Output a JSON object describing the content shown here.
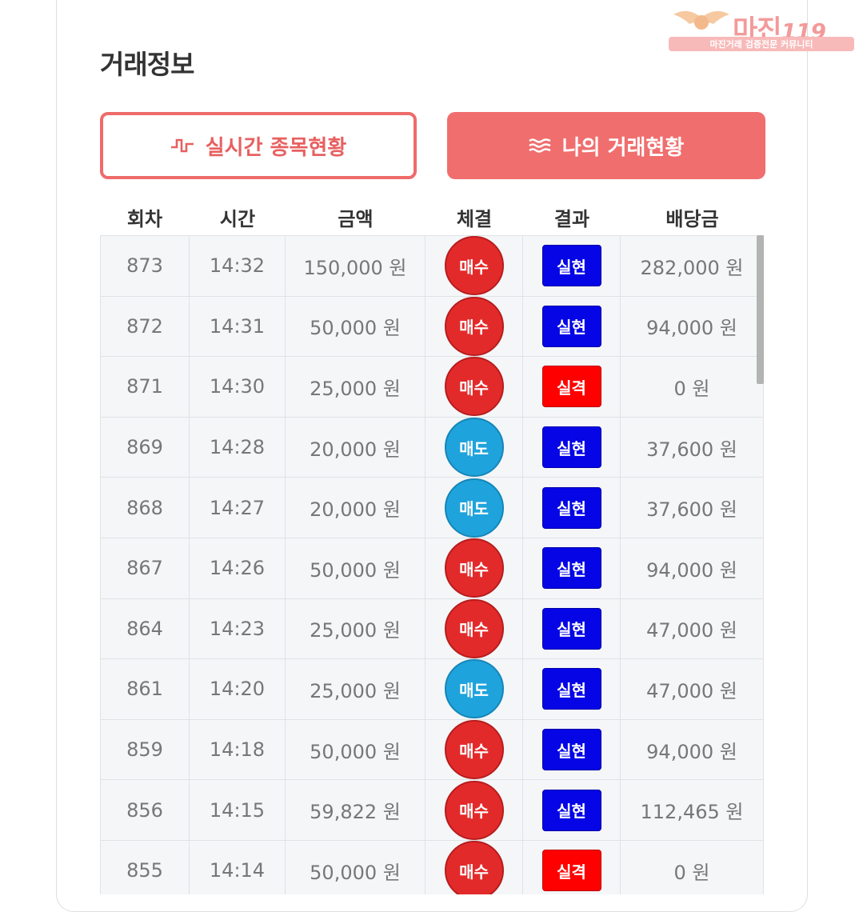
{
  "header": {
    "title": "거래정보"
  },
  "logo": {
    "name": "마진",
    "suffix": "119",
    "tagline": "마진거래 검증전문 커뮤니티"
  },
  "tabs": [
    {
      "label": "실시간 종목현황",
      "icon": "pulse-icon",
      "active": false
    },
    {
      "label": "나의 거래현황",
      "icon": "waves-icon",
      "active": true
    }
  ],
  "table": {
    "columns": [
      "회차",
      "시간",
      "금액",
      "체결",
      "결과",
      "배당금"
    ],
    "rows": [
      {
        "round": "873",
        "time": "14:32",
        "amount": "150,000 원",
        "trade": "매수",
        "result": "실현",
        "payout": "282,000 원"
      },
      {
        "round": "872",
        "time": "14:31",
        "amount": "50,000 원",
        "trade": "매수",
        "result": "실현",
        "payout": "94,000 원"
      },
      {
        "round": "871",
        "time": "14:30",
        "amount": "25,000 원",
        "trade": "매수",
        "result": "실격",
        "payout": "0 원"
      },
      {
        "round": "869",
        "time": "14:28",
        "amount": "20,000 원",
        "trade": "매도",
        "result": "실현",
        "payout": "37,600 원"
      },
      {
        "round": "868",
        "time": "14:27",
        "amount": "20,000 원",
        "trade": "매도",
        "result": "실현",
        "payout": "37,600 원"
      },
      {
        "round": "867",
        "time": "14:26",
        "amount": "50,000 원",
        "trade": "매수",
        "result": "실현",
        "payout": "94,000 원"
      },
      {
        "round": "864",
        "time": "14:23",
        "amount": "25,000 원",
        "trade": "매수",
        "result": "실현",
        "payout": "47,000 원"
      },
      {
        "round": "861",
        "time": "14:20",
        "amount": "25,000 원",
        "trade": "매도",
        "result": "실현",
        "payout": "47,000 원"
      },
      {
        "round": "859",
        "time": "14:18",
        "amount": "50,000 원",
        "trade": "매수",
        "result": "실현",
        "payout": "94,000 원"
      },
      {
        "round": "856",
        "time": "14:15",
        "amount": "59,822 원",
        "trade": "매수",
        "result": "실현",
        "payout": "112,465 원"
      },
      {
        "round": "855",
        "time": "14:14",
        "amount": "50,000 원",
        "trade": "매수",
        "result": "실격",
        "payout": "0 원"
      }
    ]
  },
  "colors": {
    "accent": "#f06e6e",
    "buy": "#e32a2a",
    "sell": "#1fa3dc",
    "win": "#0505e6",
    "lose": "#ff0000"
  }
}
